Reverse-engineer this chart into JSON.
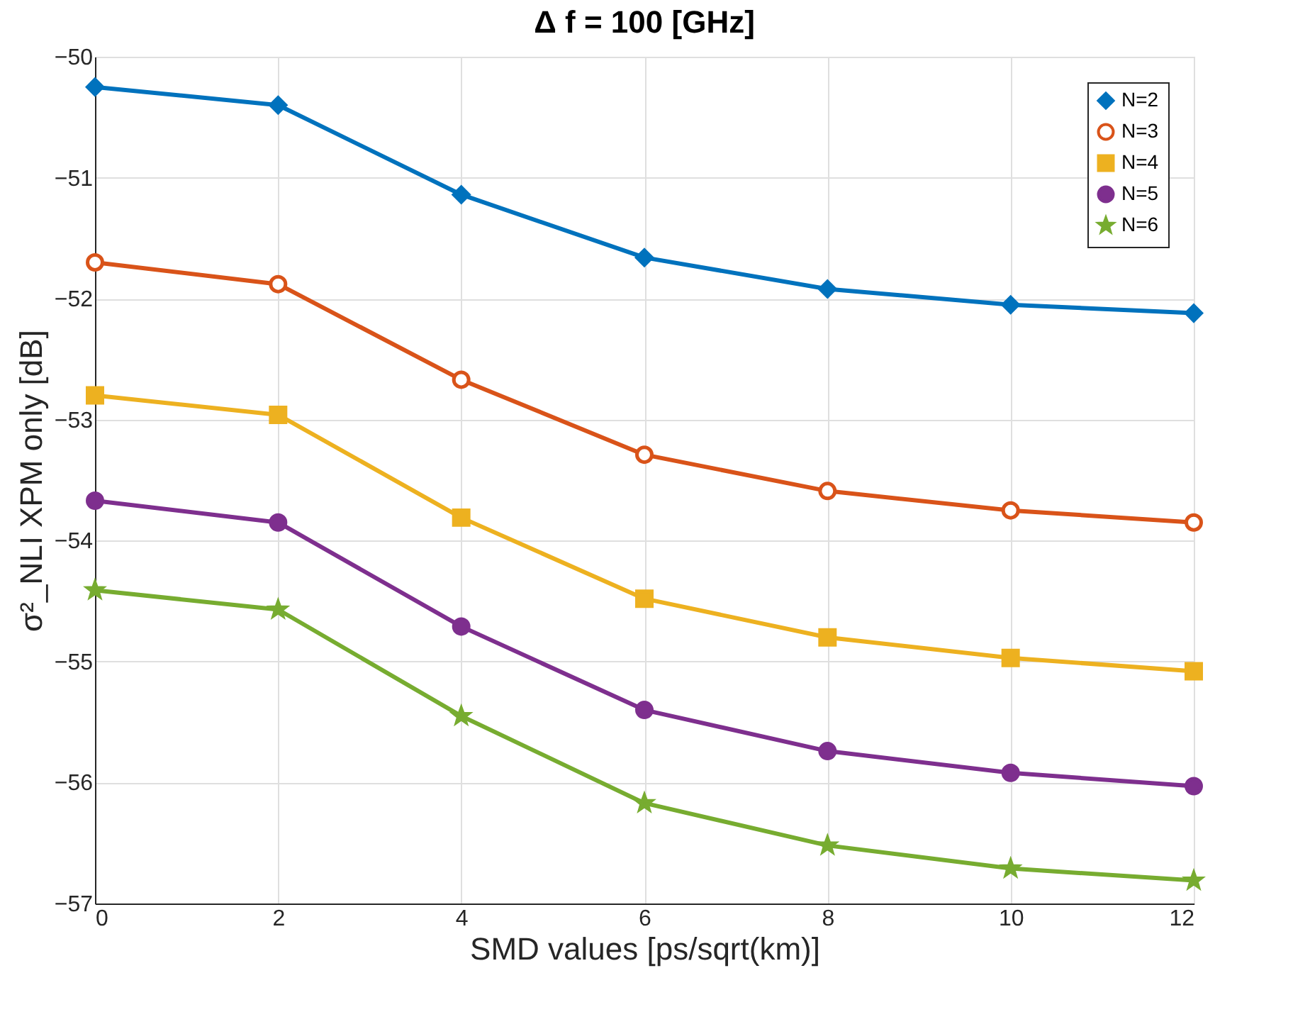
{
  "chart_data": {
    "type": "line",
    "title": "Δ f = 100 [GHz]",
    "xlabel": "SMD values [ps/sqrt(km)]",
    "ylabel": "σ²_NLI XPM only [dB]",
    "x": [
      0,
      2,
      4,
      6,
      8,
      10,
      12
    ],
    "series": [
      {
        "name": "N=2",
        "color": "#0072bd",
        "marker": "diamond",
        "values": [
          -50.25,
          -50.4,
          -51.14,
          -51.66,
          -51.92,
          -52.05,
          -52.12
        ]
      },
      {
        "name": "N=3",
        "color": "#d95319",
        "marker": "circle",
        "values": [
          -51.7,
          -51.88,
          -52.67,
          -53.29,
          -53.59,
          -53.75,
          -53.85
        ]
      },
      {
        "name": "N=4",
        "color": "#edb120",
        "marker": "square",
        "values": [
          -52.8,
          -52.96,
          -53.81,
          -54.48,
          -54.8,
          -54.97,
          -55.08
        ]
      },
      {
        "name": "N=5",
        "color": "#7e2f8e",
        "marker": "circle",
        "values": [
          -53.67,
          -53.85,
          -54.71,
          -55.4,
          -55.74,
          -55.92,
          -56.03
        ]
      },
      {
        "name": "N=6",
        "color": "#77ac30",
        "marker": "star",
        "values": [
          -54.41,
          -54.57,
          -55.45,
          -56.17,
          -56.52,
          -56.71,
          -56.81
        ]
      }
    ],
    "xlim": [
      0,
      12
    ],
    "xticks": [
      0,
      2,
      4,
      6,
      8,
      10,
      12
    ],
    "ylim": [
      -57,
      -50
    ],
    "yticks": [
      -57,
      -56,
      -55,
      -54,
      -53,
      -52,
      -51,
      -50
    ],
    "grid": true,
    "legend": "top right",
    "line_style": "solid"
  }
}
